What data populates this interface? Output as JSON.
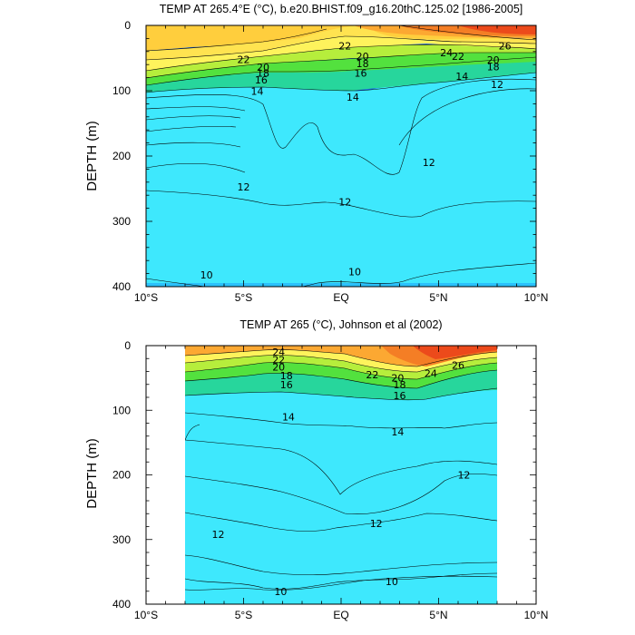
{
  "chart_data": [
    {
      "type": "heatmap",
      "variant": "filled-contour depth section",
      "title": "TEMP AT 265.4°E (°C), b.e20.BHIST.f09_g16.20thC.125.02 [1986-2005]",
      "xlabel": "",
      "ylabel": "DEPTH (m)",
      "xlim": [
        -10,
        10
      ],
      "ylim": [
        0,
        400
      ],
      "y_reversed": true,
      "x_ticks": [
        -10,
        -5,
        0,
        5,
        10
      ],
      "x_tick_labels": [
        "10°S",
        "5°S",
        "EQ",
        "5°N",
        "10°N"
      ],
      "y_ticks": [
        0,
        100,
        200,
        300,
        400
      ],
      "y_tick_labels": [
        "0",
        "100",
        "200",
        "300",
        "400"
      ],
      "colorbar": false,
      "data_extent_x": [
        -10,
        10
      ],
      "contour_levels": [
        9,
        10,
        11,
        12,
        13,
        14,
        15,
        16,
        17,
        18,
        19,
        20,
        21,
        22,
        23,
        24,
        25,
        26,
        27
      ],
      "contour_labels": [
        {
          "text": "22",
          "x": -5,
          "y": 52
        },
        {
          "text": "20",
          "x": -4,
          "y": 64
        },
        {
          "text": "18",
          "x": -4,
          "y": 73
        },
        {
          "text": "16",
          "x": -4.1,
          "y": 83
        },
        {
          "text": "14",
          "x": -4.3,
          "y": 101
        },
        {
          "text": "22",
          "x": 0.2,
          "y": 31
        },
        {
          "text": "20",
          "x": 1.1,
          "y": 47
        },
        {
          "text": "18",
          "x": 1.1,
          "y": 58
        },
        {
          "text": "16",
          "x": 1.0,
          "y": 73
        },
        {
          "text": "14",
          "x": 0.6,
          "y": 110
        },
        {
          "text": "24",
          "x": 5.4,
          "y": 42
        },
        {
          "text": "22",
          "x": 6.0,
          "y": 47
        },
        {
          "text": "26",
          "x": 8.4,
          "y": 31
        },
        {
          "text": "20",
          "x": 7.8,
          "y": 53
        },
        {
          "text": "18",
          "x": 7.8,
          "y": 63
        },
        {
          "text": "14",
          "x": 6.2,
          "y": 78
        },
        {
          "text": "12",
          "x": 8.0,
          "y": 90
        },
        {
          "text": "12",
          "x": 4.5,
          "y": 210
        },
        {
          "text": "12",
          "x": -5,
          "y": 247
        },
        {
          "text": "12",
          "x": 0.2,
          "y": 270
        },
        {
          "text": "10",
          "x": -6.9,
          "y": 382
        },
        {
          "text": "10",
          "x": 0.7,
          "y": 377
        }
      ]
    },
    {
      "type": "heatmap",
      "variant": "filled-contour depth section",
      "title": "TEMP AT 265 (°C), Johnson et al (2002)",
      "xlabel": "",
      "ylabel": "DEPTH (m)",
      "xlim": [
        -10,
        10
      ],
      "ylim": [
        0,
        400
      ],
      "y_reversed": true,
      "x_ticks": [
        -10,
        -5,
        0,
        5,
        10
      ],
      "x_tick_labels": [
        "10°S",
        "5°S",
        "EQ",
        "5°N",
        "10°N"
      ],
      "y_ticks": [
        0,
        100,
        200,
        300,
        400
      ],
      "y_tick_labels": [
        "0",
        "100",
        "200",
        "300",
        "400"
      ],
      "colorbar": false,
      "data_extent_x": [
        -8,
        8
      ],
      "data_extent_y": [
        5,
        400
      ],
      "contour_levels": [
        9,
        10,
        11,
        12,
        13,
        14,
        15,
        16,
        17,
        18,
        19,
        20,
        21,
        22,
        23,
        24,
        25,
        26,
        27
      ],
      "contour_labels": [
        {
          "text": "24",
          "x": -3.2,
          "y": 10
        },
        {
          "text": "22",
          "x": -3.2,
          "y": 22
        },
        {
          "text": "20",
          "x": -3.2,
          "y": 33
        },
        {
          "text": "18",
          "x": -2.8,
          "y": 46
        },
        {
          "text": "16",
          "x": -2.8,
          "y": 60
        },
        {
          "text": "22",
          "x": 1.6,
          "y": 45
        },
        {
          "text": "20",
          "x": 2.9,
          "y": 50
        },
        {
          "text": "18",
          "x": 3.0,
          "y": 60
        },
        {
          "text": "16",
          "x": 3.0,
          "y": 77
        },
        {
          "text": "24",
          "x": 4.6,
          "y": 43
        },
        {
          "text": "26",
          "x": 6.0,
          "y": 30
        },
        {
          "text": "14",
          "x": -2.7,
          "y": 110
        },
        {
          "text": "14",
          "x": 2.9,
          "y": 133
        },
        {
          "text": "12",
          "x": 6.3,
          "y": 200
        },
        {
          "text": "12",
          "x": 1.8,
          "y": 275
        },
        {
          "text": "12",
          "x": -6.3,
          "y": 292
        },
        {
          "text": "10",
          "x": 2.6,
          "y": 365
        },
        {
          "text": "10",
          "x": -3.1,
          "y": 380
        }
      ]
    }
  ]
}
